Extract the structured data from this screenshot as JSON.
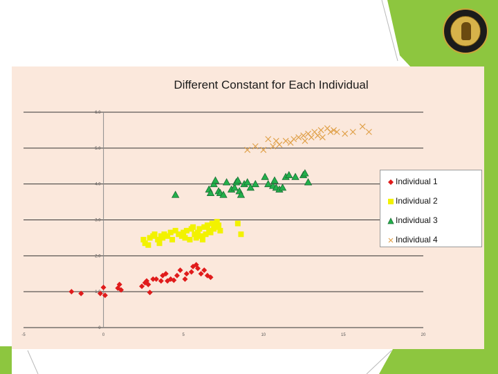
{
  "colors": {
    "accent_green": "#8dc63f",
    "panel_bg": "#fbe8dc",
    "individual_1": "#e01b1b",
    "individual_2": "#f2f200",
    "individual_3": "#22b04b",
    "individual_4": "#e0a14a"
  },
  "logo": {
    "icon": "university-seal-icon"
  },
  "chart_data": {
    "type": "scatter",
    "title": "Different Constant for Each Individual",
    "xlabel": "",
    "ylabel": "",
    "xlim": [
      -5,
      20
    ],
    "ylim": [
      0,
      6
    ],
    "x_ticks": [
      "-5",
      "0",
      "5",
      "10",
      "15",
      "20"
    ],
    "y_ticks": [
      "0",
      "1.0",
      "2.0",
      "3.0",
      "4.0",
      "5.0",
      "6.0"
    ],
    "grid": "horizontal",
    "legend_position": "right",
    "series": [
      {
        "name": "Individual 1",
        "marker": "diamond",
        "color": "#e01b1b",
        "points": [
          [
            -2,
            1.0
          ],
          [
            -1.4,
            0.95
          ],
          [
            -0.2,
            0.95
          ],
          [
            0,
            1.12
          ],
          [
            0.1,
            0.9
          ],
          [
            0.9,
            1.1
          ],
          [
            1.0,
            1.2
          ],
          [
            1.1,
            1.05
          ],
          [
            2.4,
            1.15
          ],
          [
            2.6,
            1.25
          ],
          [
            2.7,
            1.3
          ],
          [
            2.9,
            0.98
          ],
          [
            2.8,
            1.2
          ],
          [
            3.1,
            1.35
          ],
          [
            3.3,
            1.35
          ],
          [
            3.6,
            1.3
          ],
          [
            3.7,
            1.45
          ],
          [
            3.9,
            1.5
          ],
          [
            4.0,
            1.3
          ],
          [
            4.2,
            1.35
          ],
          [
            4.4,
            1.32
          ],
          [
            4.6,
            1.45
          ],
          [
            4.8,
            1.6
          ],
          [
            5.1,
            1.35
          ],
          [
            5.2,
            1.5
          ],
          [
            5.5,
            1.55
          ],
          [
            5.6,
            1.7
          ],
          [
            5.8,
            1.75
          ],
          [
            5.9,
            1.65
          ],
          [
            6.1,
            1.5
          ],
          [
            6.3,
            1.6
          ],
          [
            6.5,
            1.45
          ],
          [
            6.7,
            1.4
          ]
        ]
      },
      {
        "name": "Individual 2",
        "marker": "square",
        "color": "#f2f200",
        "points": [
          [
            2.5,
            2.45
          ],
          [
            2.6,
            2.35
          ],
          [
            2.8,
            2.3
          ],
          [
            2.9,
            2.5
          ],
          [
            3.1,
            2.55
          ],
          [
            3.2,
            2.6
          ],
          [
            3.4,
            2.45
          ],
          [
            3.5,
            2.35
          ],
          [
            3.6,
            2.55
          ],
          [
            3.7,
            2.5
          ],
          [
            3.8,
            2.6
          ],
          [
            4.0,
            2.55
          ],
          [
            4.2,
            2.65
          ],
          [
            4.3,
            2.45
          ],
          [
            4.5,
            2.7
          ],
          [
            4.7,
            2.6
          ],
          [
            4.9,
            2.55
          ],
          [
            5.0,
            2.65
          ],
          [
            5.1,
            2.5
          ],
          [
            5.2,
            2.7
          ],
          [
            5.4,
            2.45
          ],
          [
            5.5,
            2.75
          ],
          [
            5.6,
            2.8
          ],
          [
            5.7,
            2.6
          ],
          [
            5.8,
            2.5
          ],
          [
            5.9,
            2.65
          ],
          [
            6.0,
            2.75
          ],
          [
            6.1,
            2.55
          ],
          [
            6.2,
            2.45
          ],
          [
            6.3,
            2.8
          ],
          [
            6.4,
            2.6
          ],
          [
            6.5,
            2.85
          ],
          [
            6.6,
            2.7
          ],
          [
            6.7,
            2.65
          ],
          [
            6.8,
            2.9
          ],
          [
            6.9,
            2.75
          ],
          [
            7.0,
            2.8
          ],
          [
            7.1,
            2.95
          ],
          [
            7.2,
            2.85
          ],
          [
            7.3,
            2.7
          ],
          [
            8.4,
            2.9
          ],
          [
            8.6,
            2.6
          ]
        ]
      },
      {
        "name": "Individual 3",
        "marker": "triangle",
        "color": "#22b04b",
        "points": [
          [
            4.5,
            3.7
          ],
          [
            6.6,
            3.85
          ],
          [
            6.7,
            3.75
          ],
          [
            6.9,
            4.0
          ],
          [
            7.0,
            4.1
          ],
          [
            7.2,
            3.8
          ],
          [
            7.3,
            3.75
          ],
          [
            7.5,
            3.7
          ],
          [
            7.7,
            4.05
          ],
          [
            8.0,
            3.85
          ],
          [
            8.2,
            3.9
          ],
          [
            8.3,
            4.05
          ],
          [
            8.4,
            4.1
          ],
          [
            8.5,
            3.8
          ],
          [
            8.6,
            3.7
          ],
          [
            8.8,
            4.0
          ],
          [
            9.0,
            4.05
          ],
          [
            9.2,
            3.9
          ],
          [
            9.5,
            4.0
          ],
          [
            10.1,
            4.2
          ],
          [
            10.3,
            4.0
          ],
          [
            10.6,
            3.95
          ],
          [
            10.7,
            4.1
          ],
          [
            10.8,
            3.9
          ],
          [
            11.0,
            3.85
          ],
          [
            11.2,
            3.9
          ],
          [
            11.4,
            4.2
          ],
          [
            11.6,
            4.25
          ],
          [
            12.0,
            4.2
          ],
          [
            12.5,
            4.25
          ],
          [
            12.6,
            4.3
          ],
          [
            12.8,
            4.05
          ]
        ]
      },
      {
        "name": "Individual 4",
        "marker": "cross",
        "color": "#e0a14a",
        "points": [
          [
            9.0,
            4.95
          ],
          [
            9.5,
            5.05
          ],
          [
            10.0,
            4.95
          ],
          [
            10.3,
            5.25
          ],
          [
            10.6,
            5.05
          ],
          [
            10.8,
            5.2
          ],
          [
            11.0,
            5.1
          ],
          [
            11.4,
            5.2
          ],
          [
            11.7,
            5.15
          ],
          [
            11.9,
            5.25
          ],
          [
            12.2,
            5.3
          ],
          [
            12.5,
            5.35
          ],
          [
            12.6,
            5.2
          ],
          [
            12.8,
            5.4
          ],
          [
            13.0,
            5.3
          ],
          [
            13.2,
            5.45
          ],
          [
            13.4,
            5.35
          ],
          [
            13.6,
            5.5
          ],
          [
            13.7,
            5.3
          ],
          [
            14.0,
            5.55
          ],
          [
            14.2,
            5.45
          ],
          [
            14.4,
            5.5
          ],
          [
            14.6,
            5.45
          ],
          [
            15.1,
            5.4
          ],
          [
            15.6,
            5.45
          ],
          [
            16.2,
            5.6
          ],
          [
            16.6,
            5.45
          ]
        ]
      }
    ]
  }
}
